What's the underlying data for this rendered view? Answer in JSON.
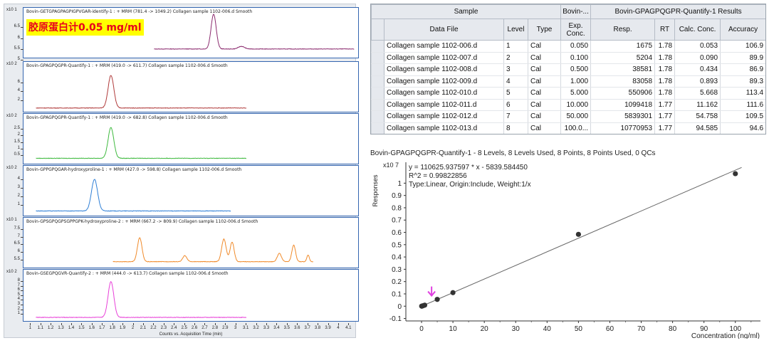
{
  "chromatograms": [
    {
      "title": "Bovin-GETGPAGPAGPIGPVGAR-identify-1 : + MRM (781.4 -> 1049.2) Collagen sample 1102-006.d  Smooth",
      "multiplier": "x10 1",
      "ymin": 5.2,
      "ymax": 7.0,
      "yticks": [
        "5",
        "5.5",
        "6",
        "6.5"
      ],
      "ytick_values": [
        5,
        5.5,
        6,
        6.5
      ],
      "color": "#8b2a6e",
      "trace": {
        "start": 2.2,
        "end": 4.15,
        "baseline": 5.5,
        "peaks": [
          [
            2.78,
            7.1,
            0.025
          ],
          [
            3.05,
            5.62,
            0.03
          ]
        ]
      },
      "annotation": "胶原蛋白计0.05 mg/ml"
    },
    {
      "title": "Bovin-GPAGPQGPR-Quantify-1 : + MRM (419.0 -> 611.7) Collagen sample 1102-006.d  Smooth",
      "multiplier": "x10 2",
      "ymin": 0,
      "ymax": 8.6,
      "yticks": [
        "2",
        "4",
        "6"
      ],
      "ytick_values": [
        2,
        4,
        6
      ],
      "color": "#b03a3a",
      "trace": {
        "start": 1.05,
        "end": 3.1,
        "baseline": 0.35,
        "peaks": [
          [
            1.78,
            7.5,
            0.028
          ]
        ]
      }
    },
    {
      "title": "Bovin-GPAGPQGPR-Quantify-1 : + MRM (419.0 -> 682.8) Collagen sample 1102-006.d  Smooth",
      "multiplier": "x10 2",
      "ymin": 0,
      "ymax": 3.0,
      "yticks": [
        "0.5",
        "1",
        "1.5",
        "2",
        "2.5"
      ],
      "ytick_values": [
        0.5,
        1,
        1.5,
        2,
        2.5
      ],
      "color": "#3fba3f",
      "trace": {
        "start": 1.05,
        "end": 3.1,
        "baseline": 0.25,
        "peaks": [
          [
            1.78,
            2.6,
            0.028
          ]
        ]
      }
    },
    {
      "title": "Bovin-GPPGPQGAR-hydroxyproline-1 : + MRM (427.0 -> 598.8) Collagen sample 1102-006.d  Smooth",
      "multiplier": "x10 2",
      "ymin": 0,
      "ymax": 4.6,
      "yticks": [
        "1",
        "2",
        "3",
        "4"
      ],
      "ytick_values": [
        1,
        2,
        3,
        4
      ],
      "color": "#2f7fd6",
      "trace": {
        "start": 1.05,
        "end": 2.95,
        "baseline": 0.3,
        "peaks": [
          [
            1.62,
            4.0,
            0.03
          ]
        ]
      }
    },
    {
      "title": "Bovin-GPSGPQGPSGPPGPK-hydroxyproline-2 : + MRM (667.2 -> 809.9) Collagen sample 1102-006.d  Smooth",
      "multiplier": "x10 1",
      "ymin": 5.1,
      "ymax": 7.7,
      "yticks": [
        "5.5",
        "6",
        "6.5",
        "7",
        "7.5"
      ],
      "ytick_values": [
        5.5,
        6,
        6.5,
        7,
        7.5
      ],
      "color": "#f08a2a",
      "trace": {
        "start": 1.8,
        "end": 3.75,
        "baseline": 5.35,
        "peaks": [
          [
            2.06,
            6.95,
            0.022
          ],
          [
            2.5,
            5.75,
            0.02
          ],
          [
            2.88,
            6.85,
            0.022
          ],
          [
            2.96,
            6.65,
            0.02
          ],
          [
            3.42,
            5.9,
            0.02
          ],
          [
            3.56,
            6.45,
            0.018
          ],
          [
            3.7,
            5.8,
            0.012
          ]
        ]
      }
    },
    {
      "title": "Bovin-GSEGPQGVR-Quantify-2 : + MRM (444.0 -> 613.7) Collagen sample 1102-006.d  Smooth",
      "multiplier": "x10 2",
      "ymin": 0,
      "ymax": 8.6,
      "yticks": [
        "1",
        "2",
        "3",
        "4",
        "5",
        "6",
        "7",
        "8"
      ],
      "ytick_values": [
        1,
        2,
        3,
        4,
        5,
        6,
        7,
        8
      ],
      "color": "#e840d8",
      "trace": {
        "start": 1.05,
        "end": 3.1,
        "baseline": 0.3,
        "peaks": [
          [
            1.78,
            7.9,
            0.028
          ]
        ]
      }
    }
  ],
  "time_axis": {
    "label": "Counts vs. Acquisition Time (min)",
    "min": 0.97,
    "max": 4.16,
    "ticks": [
      "1",
      "1.1",
      "1.2",
      "1.3",
      "1.4",
      "1.5",
      "1.6",
      "1.7",
      "1.8",
      "1.9",
      "2",
      "2.1",
      "2.2",
      "2.3",
      "2.4",
      "2.5",
      "2.6",
      "2.7",
      "2.8",
      "2.9",
      "3",
      "3.1",
      "3.2",
      "3.3",
      "3.4",
      "3.5",
      "3.6",
      "3.7",
      "3.8",
      "3.9",
      "4",
      "4.1"
    ]
  },
  "results_table": {
    "group_headers": {
      "sample": "Sample",
      "bovin": "Bovin-...",
      "results": "Bovin-GPAGPQGPR-Quantify-1  Results"
    },
    "columns": [
      "Data File",
      "Level",
      "Type",
      "Exp. Conc.",
      "Resp.",
      "RT",
      "Calc. Conc.",
      "Accuracy"
    ],
    "rows": [
      [
        "Collagen sample 1102-006.d",
        "1",
        "Cal",
        "0.050",
        "1675",
        "1.78",
        "0.053",
        "106.9"
      ],
      [
        "Collagen sample 1102-007.d",
        "2",
        "Cal",
        "0.100",
        "5204",
        "1.78",
        "0.090",
        "89.9"
      ],
      [
        "Collagen sample 1102-008.d",
        "3",
        "Cal",
        "0.500",
        "38581",
        "1.78",
        "0.434",
        "86.9"
      ],
      [
        "Collagen sample 1102-009.d",
        "4",
        "Cal",
        "1.000",
        "83058",
        "1.78",
        "0.893",
        "89.3"
      ],
      [
        "Collagen sample 1102-010.d",
        "5",
        "Cal",
        "5.000",
        "550906",
        "1.78",
        "5.668",
        "113.4"
      ],
      [
        "Collagen sample 1102-011.d",
        "6",
        "Cal",
        "10.000",
        "1099418",
        "1.77",
        "11.162",
        "111.6"
      ],
      [
        "Collagen sample 1102-012.d",
        "7",
        "Cal",
        "50.000",
        "5839301",
        "1.77",
        "54.758",
        "109.5"
      ],
      [
        "Collagen sample 1102-013.d",
        "8",
        "Cal",
        "100.0...",
        "10770953",
        "1.77",
        "94.585",
        "94.6"
      ]
    ]
  },
  "chart_data": {
    "type": "scatter",
    "title": "Bovin-GPAGPQGPR-Quantify-1 - 8 Levels, 8 Levels Used, 8 Points, 8 Points Used, 0 QCs",
    "multiplier": "x10 7",
    "equation": "y = 110625.937597 * x  - 5839.584450",
    "r2": "R^2 = 0.99822856",
    "fit_info": "Type:Linear, Origin:Include, Weight:1/x",
    "xlabel": "Concentration (ng/ml)",
    "ylabel": "Responses",
    "xlim": [
      -5,
      108
    ],
    "ylim": [
      -0.12,
      1.17
    ],
    "xticks": [
      0,
      10,
      20,
      30,
      40,
      50,
      60,
      70,
      80,
      90,
      100
    ],
    "yticks": [
      -0.1,
      0,
      0.1,
      0.2,
      0.3,
      0.4,
      0.5,
      0.6,
      0.7,
      0.8,
      0.9,
      1
    ],
    "x": [
      0.05,
      0.1,
      0.5,
      1.0,
      5.0,
      10.0,
      50.0,
      100.0
    ],
    "y": [
      0.0001675,
      0.0005204,
      0.0038581,
      0.0083058,
      0.0550906,
      0.1099418,
      0.5839301,
      1.0770953
    ],
    "fit": {
      "slope": 110625.937597,
      "intercept": -5839.58445,
      "x_range": [
        0,
        102
      ]
    },
    "marker_arrow": {
      "x": 3.2,
      "color": "#e040e0"
    },
    "colors": {
      "points": "#333333",
      "line": "#666666"
    }
  }
}
